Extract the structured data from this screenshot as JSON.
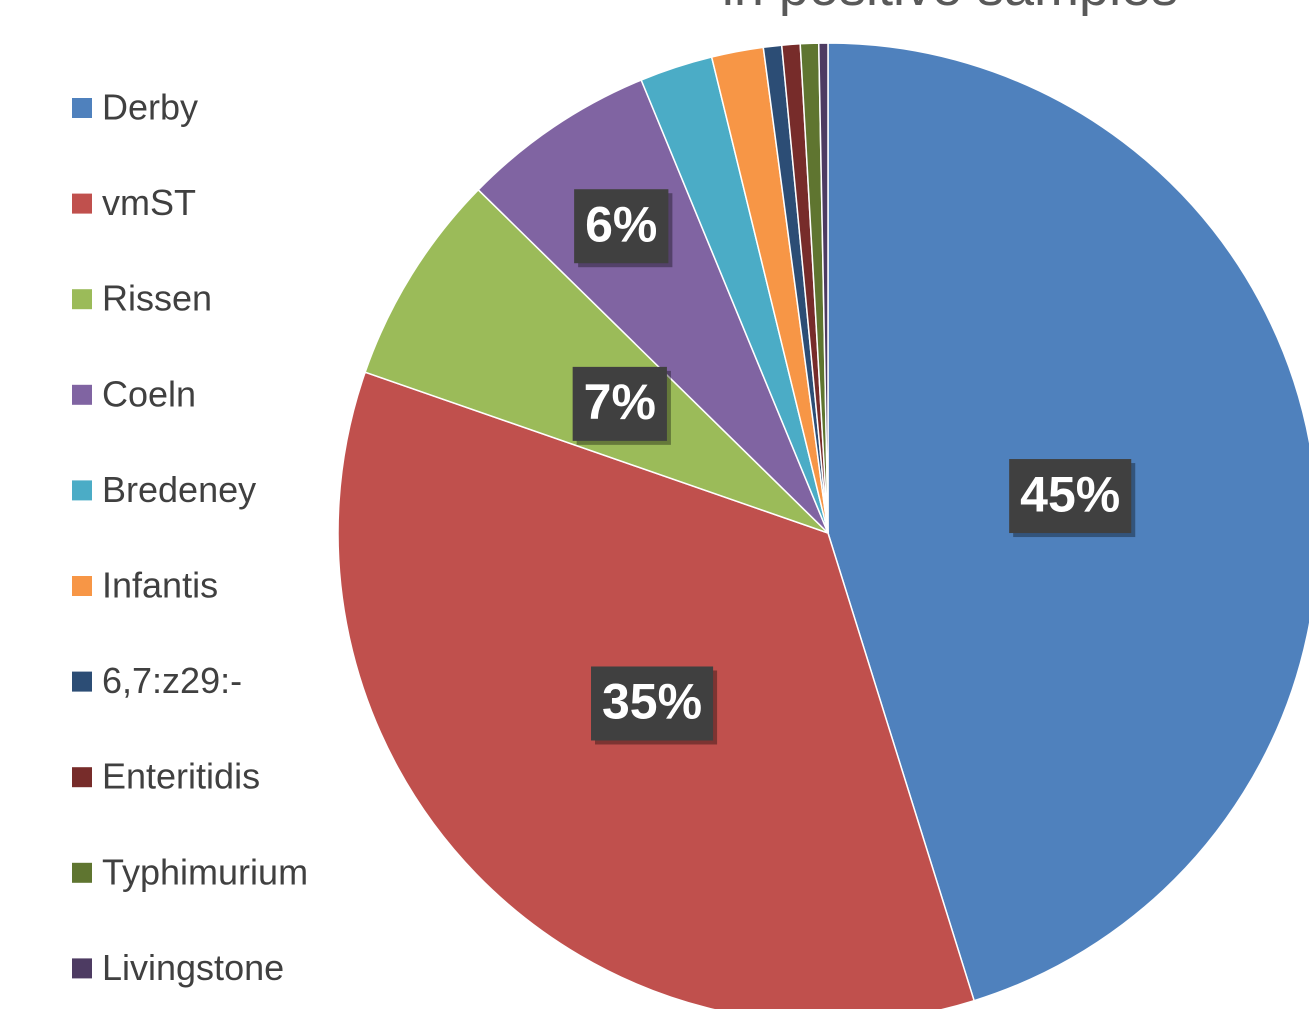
{
  "chart_data": {
    "type": "pie",
    "title": "in positive samples",
    "categories": [
      "Derby",
      "vmST",
      "Rissen",
      "Coeln",
      "Bredeney",
      "Infantis",
      "6,7:z29:-",
      "Enteritidis",
      "Typhimurium",
      "Livingstone"
    ],
    "values": [
      45,
      35,
      7,
      6.4,
      2.4,
      1.7,
      0.6,
      0.6,
      0.6,
      0.3
    ],
    "value_labels": [
      "45%",
      "35%",
      "7%",
      "6%",
      null,
      null,
      null,
      null,
      null,
      null
    ],
    "colors": [
      "#4f81bd",
      "#c0504d",
      "#9bbb59",
      "#8064a2",
      "#4bacc6",
      "#f79646",
      "#2c4d75",
      "#772c2a",
      "#5f7530",
      "#4d3b62"
    ],
    "legend": "left"
  }
}
